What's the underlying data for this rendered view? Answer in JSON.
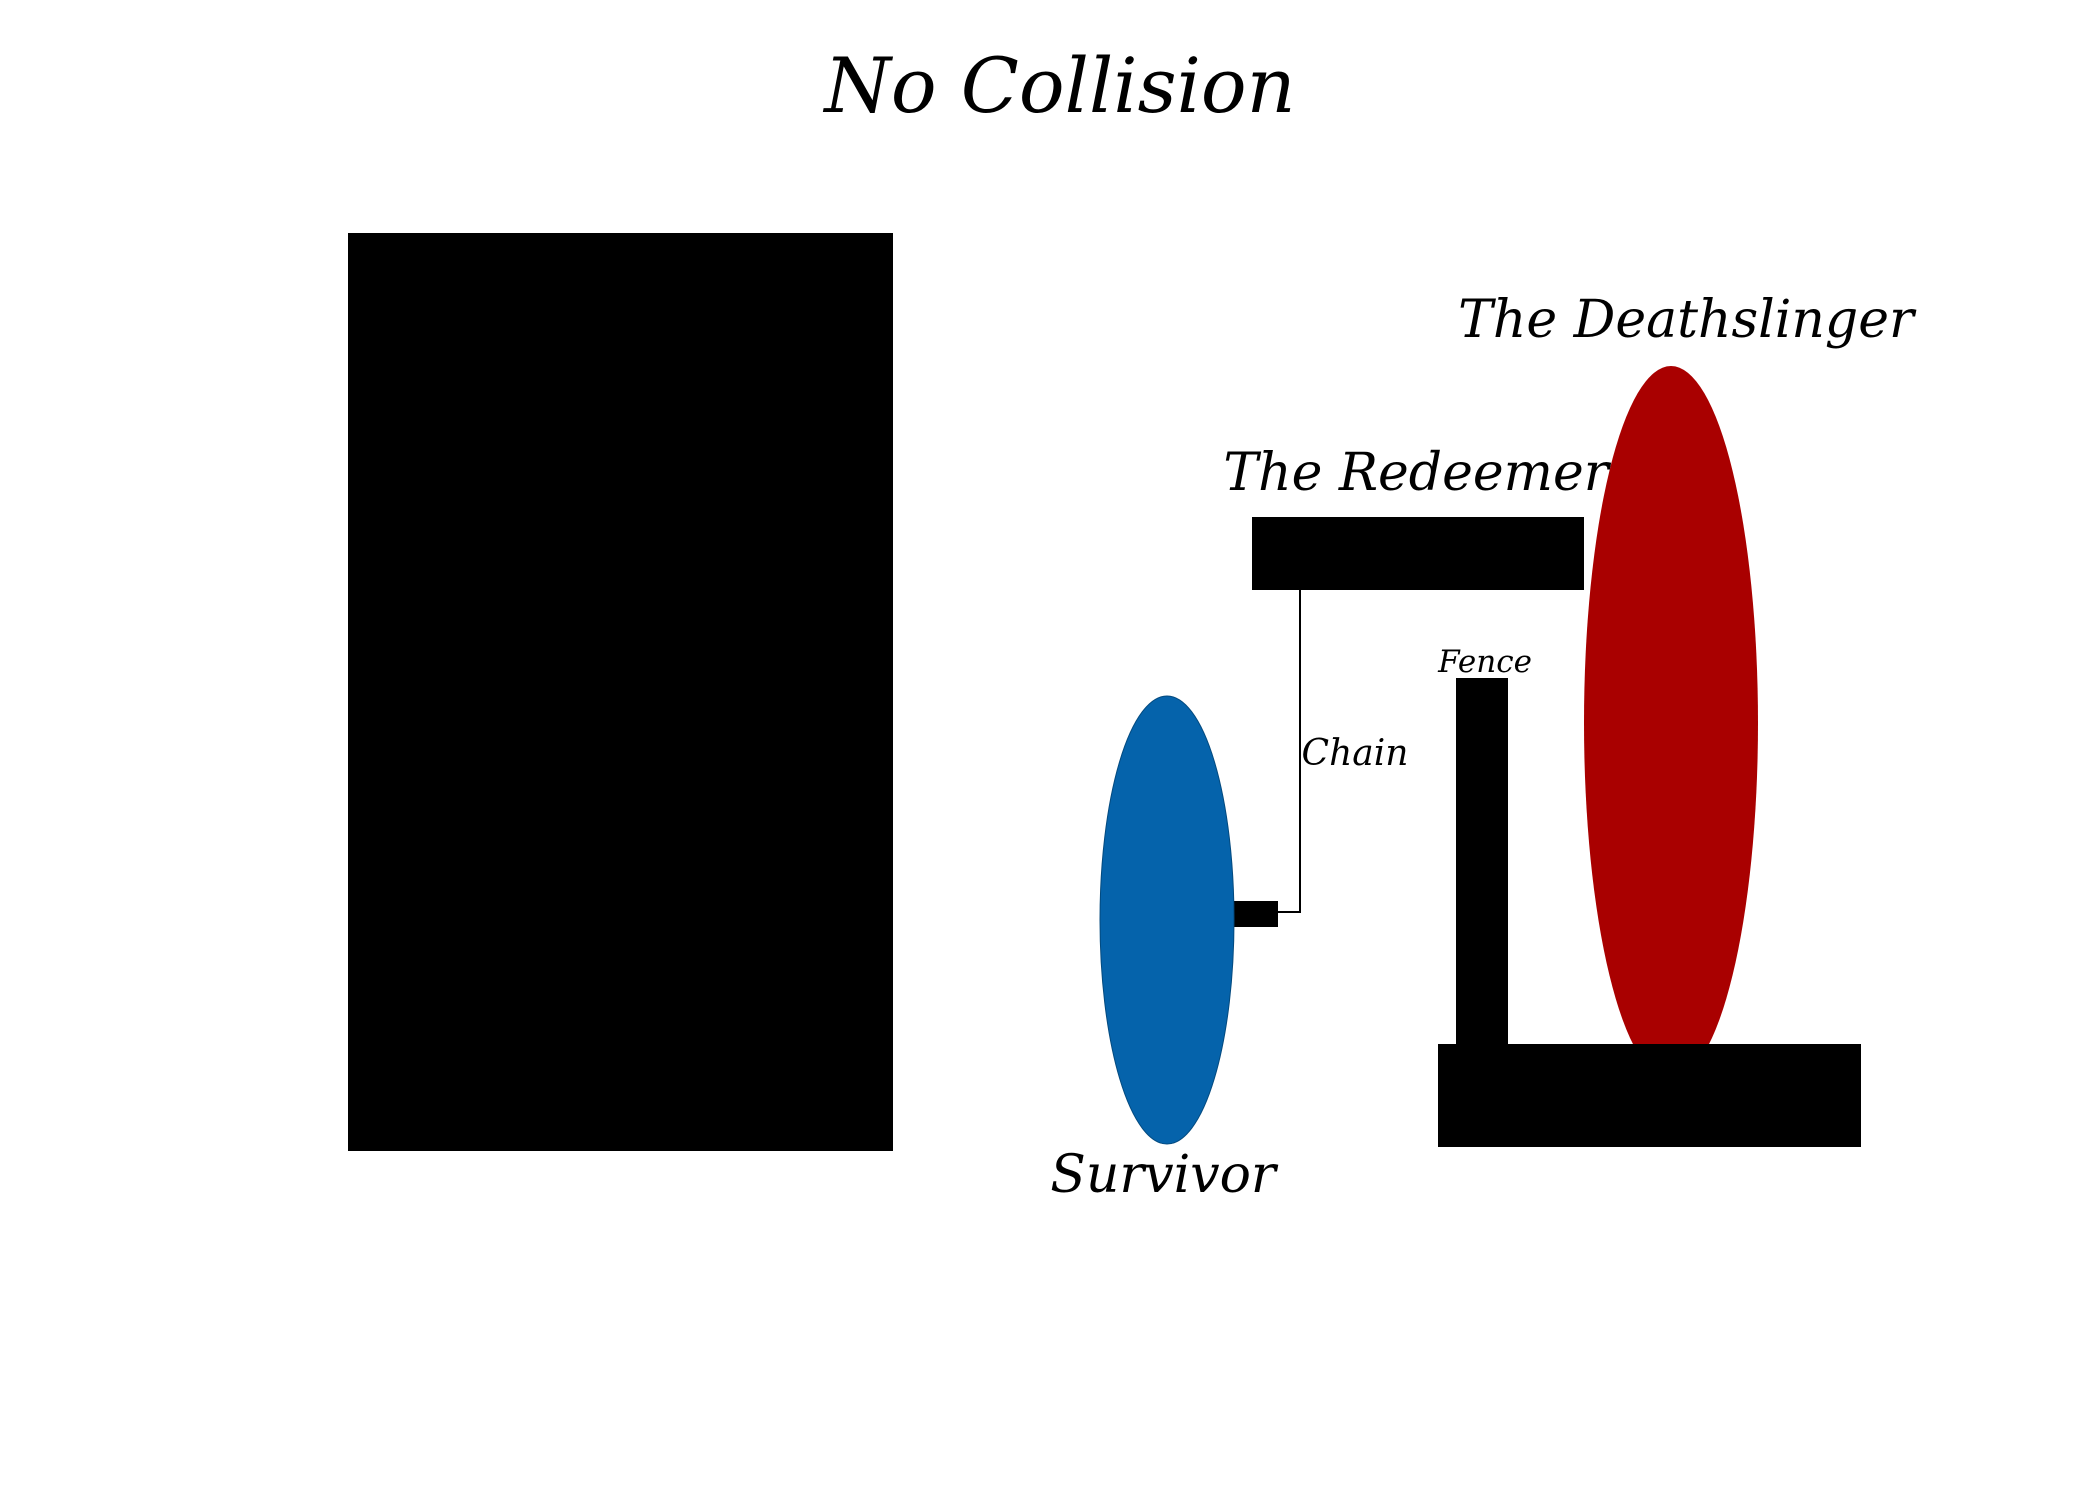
{
  "title": "No Collision",
  "labels": {
    "deathslinger": "The Deathslinger",
    "redeemer": "The Redeemer",
    "fence": "Fence",
    "chain": "Chain",
    "survivor": "Survivor"
  },
  "colors": {
    "background": "#ffffff",
    "block": "#000000",
    "survivor": "#0563ab",
    "deathslinger": "#a90000",
    "text": "#000000"
  }
}
